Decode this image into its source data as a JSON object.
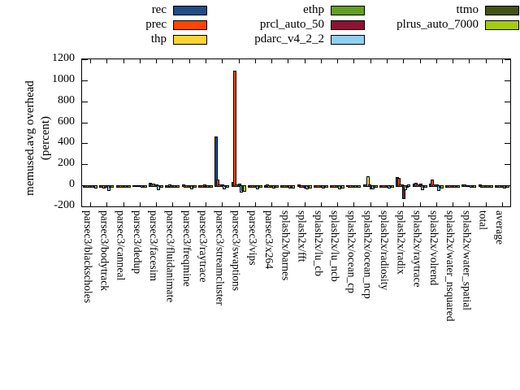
{
  "chart_data": {
    "type": "bar",
    "title": "",
    "ylabel": "memused.avg overhead (percent)",
    "ylabel_lines": [
      "memused.avg overhead",
      "(percent)"
    ],
    "ylim": [
      -200,
      1200
    ],
    "ytick_step": 200,
    "yticks": [
      1200,
      1000,
      800,
      600,
      400,
      200,
      0,
      -200
    ],
    "grid": false,
    "legend_position": "top",
    "legend_columns": [
      [
        "rec",
        "prec",
        "thp"
      ],
      [
        "ethp",
        "prcl_auto_50",
        "pdarc_v4_2_2"
      ],
      [
        "ttmo",
        "plrus_auto_7000"
      ]
    ],
    "categories": [
      "parsec3/blackscholes",
      "parsec3/bodytrack",
      "parsec3/canneal",
      "parsec3/dedup",
      "parsec3/facesim",
      "parsec3/fluidanimate",
      "parsec3/freqmine",
      "parsec3/raytrace",
      "parsec3/streamcluster",
      "parsec3/swaptions",
      "parsec3/vips",
      "parsec3/x264",
      "splash2x/barnes",
      "splash2x/fft",
      "splash2x/lu_cb",
      "splash2x/lu_ncb",
      "splash2x/ocean_cp",
      "splash2x/ocean_ncp",
      "splash2x/radiosity",
      "splash2x/radix",
      "splash2x/raytrace",
      "splash2x/volrend",
      "splash2x/water_nsquared",
      "splash2x/water_spatial",
      "total",
      "average"
    ],
    "series": [
      {
        "name": "rec",
        "color": "#1b4d87",
        "values": [
          -3,
          -5,
          -4,
          3,
          28,
          -3,
          5,
          -4,
          468,
          35,
          -6,
          -8,
          -5,
          8,
          -6,
          -5,
          3,
          5,
          -4,
          78,
          15,
          15,
          -4,
          12,
          6,
          -5
        ]
      },
      {
        "name": "prec",
        "color": "#ff4500",
        "values": [
          -4,
          -6,
          -5,
          2,
          18,
          -4,
          -8,
          -5,
          58,
          1090,
          -8,
          5,
          -6,
          -8,
          -8,
          -10,
          -4,
          6,
          -6,
          68,
          25,
          58,
          -5,
          5,
          -4,
          -7
        ]
      },
      {
        "name": "thp",
        "color": "#ffd335",
        "values": [
          -4,
          -12,
          -4,
          2,
          15,
          8,
          -10,
          -4,
          8,
          10,
          -7,
          -6,
          -5,
          -10,
          -7,
          -9,
          -3,
          88,
          -5,
          8,
          10,
          8,
          -4,
          3,
          -3,
          -6
        ]
      },
      {
        "name": "ethp",
        "color": "#62a01e",
        "values": [
          -3,
          -5,
          -4,
          2,
          12,
          -4,
          -6,
          6,
          5,
          6,
          -6,
          -4,
          -4,
          -7,
          -6,
          -7,
          -3,
          10,
          -4,
          5,
          8,
          5,
          -3,
          3,
          -3,
          -5
        ]
      },
      {
        "name": "prcl_auto_50",
        "color": "#8c1333",
        "values": [
          -4,
          -8,
          -5,
          2,
          8,
          -3,
          -8,
          -4,
          6,
          20,
          -8,
          -5,
          -6,
          -14,
          -9,
          -10,
          -4,
          -25,
          -8,
          -112,
          18,
          10,
          -5,
          2,
          -4,
          -9
        ]
      },
      {
        "name": "pdarc_v4_2_2",
        "color": "#8fd0f2",
        "values": [
          -6,
          -40,
          -8,
          -4,
          -28,
          -6,
          -22,
          -8,
          -25,
          -55,
          -24,
          -14,
          -12,
          -20,
          -17,
          -22,
          -6,
          -20,
          -12,
          -30,
          -28,
          -40,
          -8,
          -6,
          -6,
          -13
        ]
      },
      {
        "name": "ttmo",
        "color": "#455310",
        "values": [
          -3,
          -4,
          -3,
          2,
          4,
          -2,
          -4,
          -3,
          4,
          -35,
          -5,
          -3,
          -4,
          -6,
          -5,
          -6,
          -2,
          -4,
          4,
          -5,
          -6,
          -5,
          -3,
          2,
          -2,
          -4
        ]
      },
      {
        "name": "plrus_auto_7000",
        "color": "#a5cc0f",
        "values": [
          -12,
          -8,
          -6,
          -3,
          -6,
          -4,
          -8,
          -5,
          -10,
          -45,
          -9,
          -8,
          -13,
          -11,
          -9,
          -11,
          -4,
          -9,
          -7,
          10,
          -10,
          -13,
          -5,
          -5,
          -4,
          -7
        ]
      }
    ]
  }
}
